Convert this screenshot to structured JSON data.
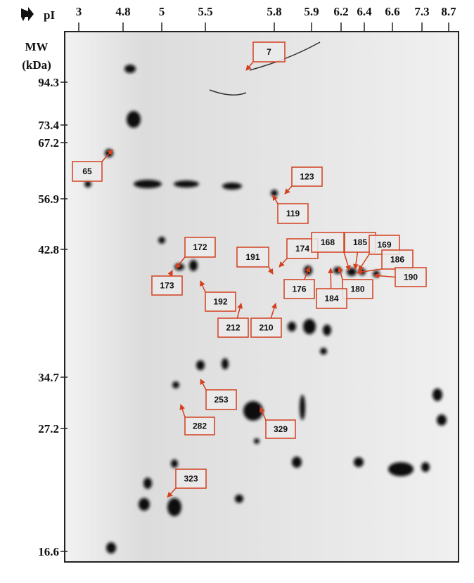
{
  "axes": {
    "pi_title": "pI",
    "mw_title": "MW",
    "mw_unit": "(kDa)",
    "pi_ticks": [
      "3",
      "4.8",
      "5",
      "5.5",
      "5.8",
      "5.9",
      "6.2",
      "6.4",
      "6.6",
      "7.3",
      "8.7"
    ],
    "mw_ticks": [
      "94.3",
      "73.4",
      "67.2",
      "56.9",
      "42.8",
      "34.7",
      "27.2",
      "16.6"
    ]
  },
  "spots": [
    "7",
    "65",
    "123",
    "119",
    "172",
    "191",
    "174",
    "168",
    "185",
    "169",
    "186",
    "190",
    "173",
    "176",
    "180",
    "184",
    "192",
    "212",
    "210",
    "253",
    "282",
    "329",
    "323"
  ]
}
